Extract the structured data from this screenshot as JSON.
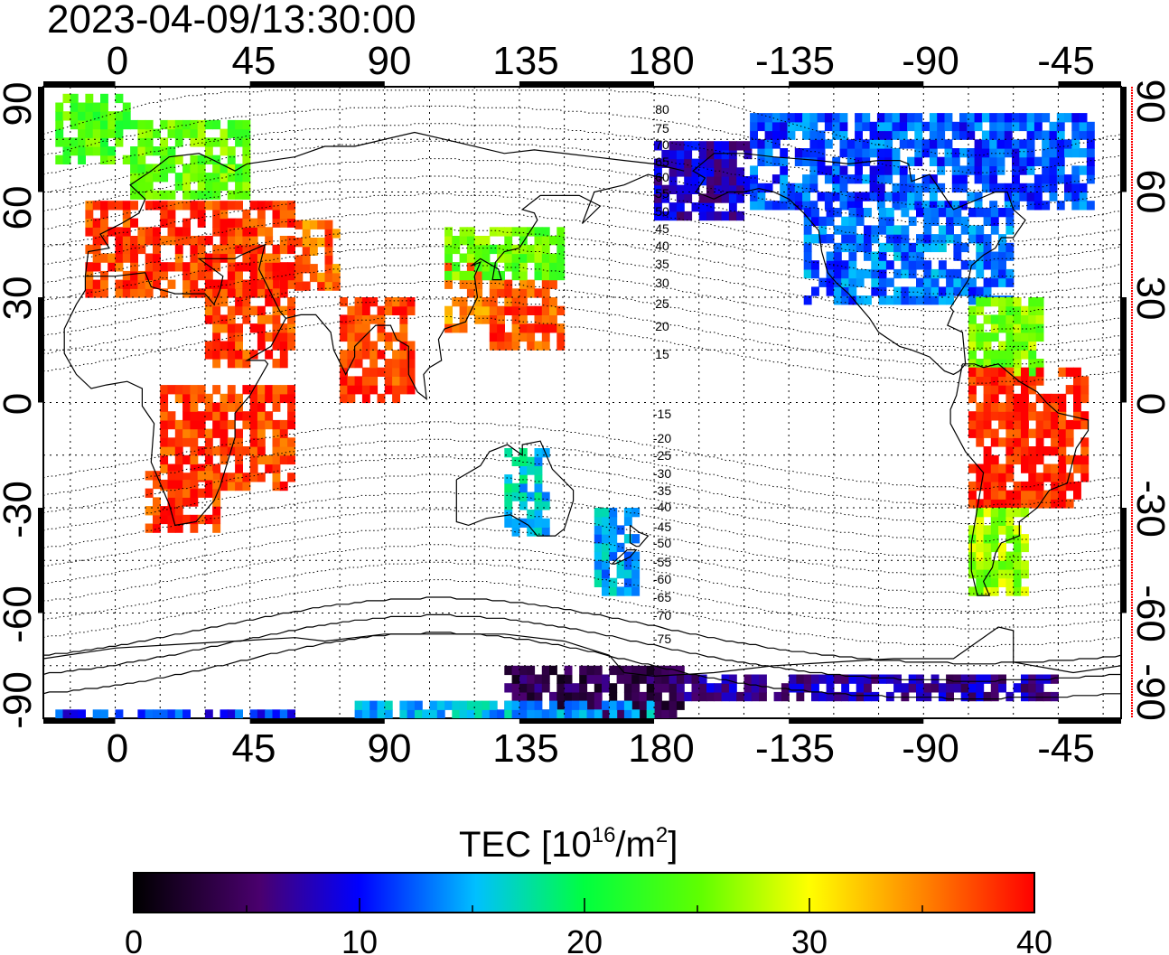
{
  "title": "2023-04-09/13:30:00",
  "map": {
    "projection": "equirectangular",
    "lon_range": [
      -24,
      336
    ],
    "lat_range": [
      -90,
      90
    ],
    "top_lon_labels": [
      "0",
      "45",
      "90",
      "135",
      "180",
      "-135",
      "-90",
      "-45"
    ],
    "bottom_lon_labels": [
      "0",
      "45",
      "90",
      "135",
      "180",
      "-135",
      "-90",
      "-45"
    ],
    "left_lat_labels": [
      "90",
      "60",
      "30",
      "0",
      "-30",
      "-60",
      "-90"
    ],
    "right_lat_labels": [
      "90",
      "60",
      "30",
      "0",
      "-30",
      "-60",
      "-90"
    ],
    "contour_labels": [
      "80",
      "75",
      "70",
      "65",
      "60",
      "55",
      "50",
      "45",
      "40",
      "35",
      "30",
      "25",
      "20",
      "15",
      "-15",
      "-20",
      "-25",
      "-30",
      "-35",
      "-40",
      "-45",
      "-50",
      "-55",
      "-60",
      "-65",
      "-70",
      "-75"
    ],
    "grid": true,
    "colors": {
      "coast": "#000000",
      "grid": "#000000",
      "right_axis": "#ff0000"
    }
  },
  "colorbar": {
    "title_main": "TEC  [10",
    "title_sup1": "16",
    "title_mid": "/m",
    "title_sup2": "2",
    "title_end": "]",
    "min": 0,
    "max": 40,
    "tick_labels": [
      "0",
      "10",
      "20",
      "30",
      "40"
    ],
    "stops": [
      "#000000",
      "#4a006e",
      "#0000ff",
      "#00ffff",
      "#00ff00",
      "#ffff00",
      "#ff8000",
      "#ff0000"
    ]
  },
  "chart_data": {
    "type": "heatmap",
    "title": "2023-04-09/13:30:00",
    "value_label": "TEC [10^16/m^2]",
    "xlabel": "",
    "ylabel": "",
    "xlim": [
      -24,
      336
    ],
    "ylim": [
      -90,
      90
    ],
    "scale_range": [
      0,
      40
    ],
    "regions": [
      {
        "lon": [
          -20,
          5
        ],
        "lat": [
          68,
          88
        ],
        "tec": 24
      },
      {
        "lon": [
          5,
          45
        ],
        "lat": [
          58,
          80
        ],
        "tec": 25
      },
      {
        "lon": [
          -10,
          60
        ],
        "lat": [
          30,
          57
        ],
        "tec": 38
      },
      {
        "lon": [
          60,
          75
        ],
        "lat": [
          32,
          50
        ],
        "tec": 36
      },
      {
        "lon": [
          30,
          60
        ],
        "lat": [
          10,
          35
        ],
        "tec": 38
      },
      {
        "lon": [
          75,
          100
        ],
        "lat": [
          0,
          30
        ],
        "tec": 38
      },
      {
        "lon": [
          15,
          60
        ],
        "lat": [
          -25,
          5
        ],
        "tec": 38
      },
      {
        "lon": [
          10,
          35
        ],
        "lat": [
          -37,
          -20
        ],
        "tec": 38
      },
      {
        "lon": [
          110,
          125
        ],
        "lat": [
          20,
          38
        ],
        "tec": 35
      },
      {
        "lon": [
          125,
          150
        ],
        "lat": [
          15,
          35
        ],
        "tec": 37
      },
      {
        "lon": [
          110,
          150
        ],
        "lat": [
          35,
          48
        ],
        "tec": 25
      },
      {
        "lon": [
          130,
          145
        ],
        "lat": [
          -38,
          -15
        ],
        "tec": 16
      },
      {
        "lon": [
          160,
          175
        ],
        "lat": [
          -55,
          -30
        ],
        "tec": 15
      },
      {
        "lon": [
          180,
          212
        ],
        "lat": [
          52,
          73
        ],
        "tec": 8
      },
      {
        "lon": [
          212,
          325
        ],
        "lat": [
          55,
          82
        ],
        "tec": 12
      },
      {
        "lon": [
          230,
          300
        ],
        "lat": [
          28,
          55
        ],
        "tec": 13
      },
      {
        "lon": [
          285,
          310
        ],
        "lat": [
          5,
          28
        ],
        "tec": 26
      },
      {
        "lon": [
          285,
          325
        ],
        "lat": [
          -30,
          10
        ],
        "tec": 39
      },
      {
        "lon": [
          285,
          305
        ],
        "lat": [
          -55,
          -30
        ],
        "tec": 27
      },
      {
        "lon": [
          130,
          190
        ],
        "lat": [
          -90,
          -75
        ],
        "tec": 4
      },
      {
        "lon": [
          190,
          315
        ],
        "lat": [
          -85,
          -78
        ],
        "tec": 7
      },
      {
        "lon": [
          -20,
          60
        ],
        "lat": [
          -90,
          -88
        ],
        "tec": 11
      },
      {
        "lon": [
          80,
          180
        ],
        "lat": [
          -90,
          -86
        ],
        "tec": 15
      }
    ]
  }
}
